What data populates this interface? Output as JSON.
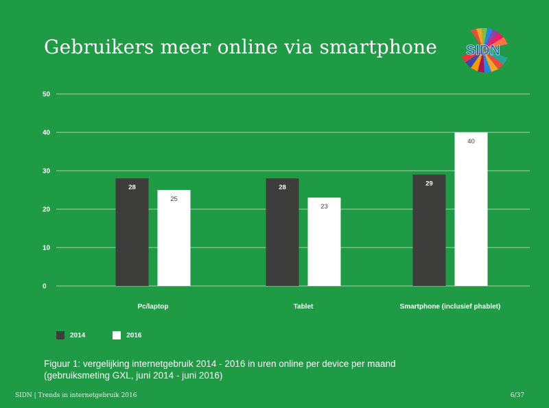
{
  "page": {
    "title": "Gebruikers meer online via smartphone",
    "logo_text": "SIDN",
    "caption_line1": "Figuur 1: vergelijking internetgebruik 2014 - 2016 in uren online per device per maand",
    "caption_line2": "(gebruiksmeting GXL, juni 2014 - juni 2016)",
    "footer_left": "SIDN | Trends in internetgebruik 2016",
    "footer_right": "6/37"
  },
  "colors": {
    "background": "#1f9a45",
    "series_2014": "#3d3d3b",
    "series_2016": "#ffffff",
    "gridline": "#9fd4ad"
  },
  "chart_data": {
    "type": "bar",
    "categories": [
      "Pc/laptop",
      "Tablet",
      "Smartphone (inclusief phablet)"
    ],
    "series": [
      {
        "name": "2014",
        "values": [
          28,
          28,
          29
        ]
      },
      {
        "name": "2016",
        "values": [
          25,
          23,
          40
        ]
      }
    ],
    "ylim": [
      0,
      50
    ],
    "yticks": [
      0,
      10,
      20,
      30,
      40,
      50
    ],
    "grid": true,
    "legend_position": "bottom-left"
  }
}
